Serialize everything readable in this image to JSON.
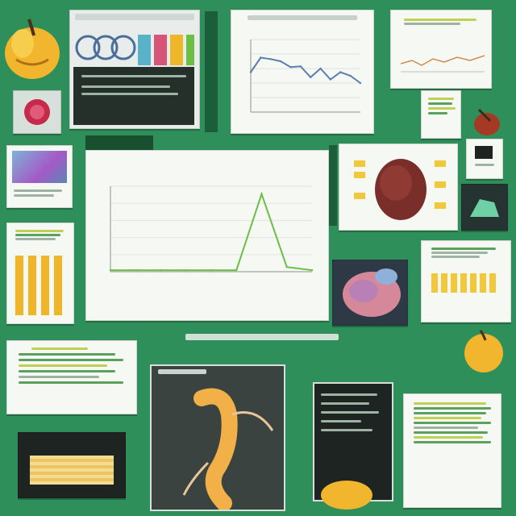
{
  "main_chart": {
    "title_line1": "",
    "title_line2": "",
    "xlabel": "",
    "ylabel": ""
  },
  "chart_data": [
    {
      "type": "line",
      "x": [
        0,
        1,
        2,
        3,
        4,
        5,
        6,
        7,
        8
      ],
      "y": [
        2,
        2,
        2,
        2,
        2,
        2,
        100,
        6,
        2
      ],
      "ylim": [
        0,
        110
      ],
      "color": "#6bbf45",
      "grid": true
    },
    {
      "type": "line",
      "x": [
        0,
        1,
        2,
        3,
        4,
        5,
        6,
        7,
        8,
        9,
        10,
        11
      ],
      "y": [
        55,
        75,
        73,
        70,
        62,
        63,
        48,
        60,
        45,
        55,
        50,
        40
      ],
      "ylim": [
        0,
        100
      ],
      "color": "#5a7fb0",
      "grid": true
    }
  ],
  "colors": {
    "background": "#2f8f5a",
    "accent_yellow": "#f0b62a",
    "accent_green": "#6bbf45",
    "dark_panel": "#1d2421",
    "organic": "#7a2e2a"
  }
}
